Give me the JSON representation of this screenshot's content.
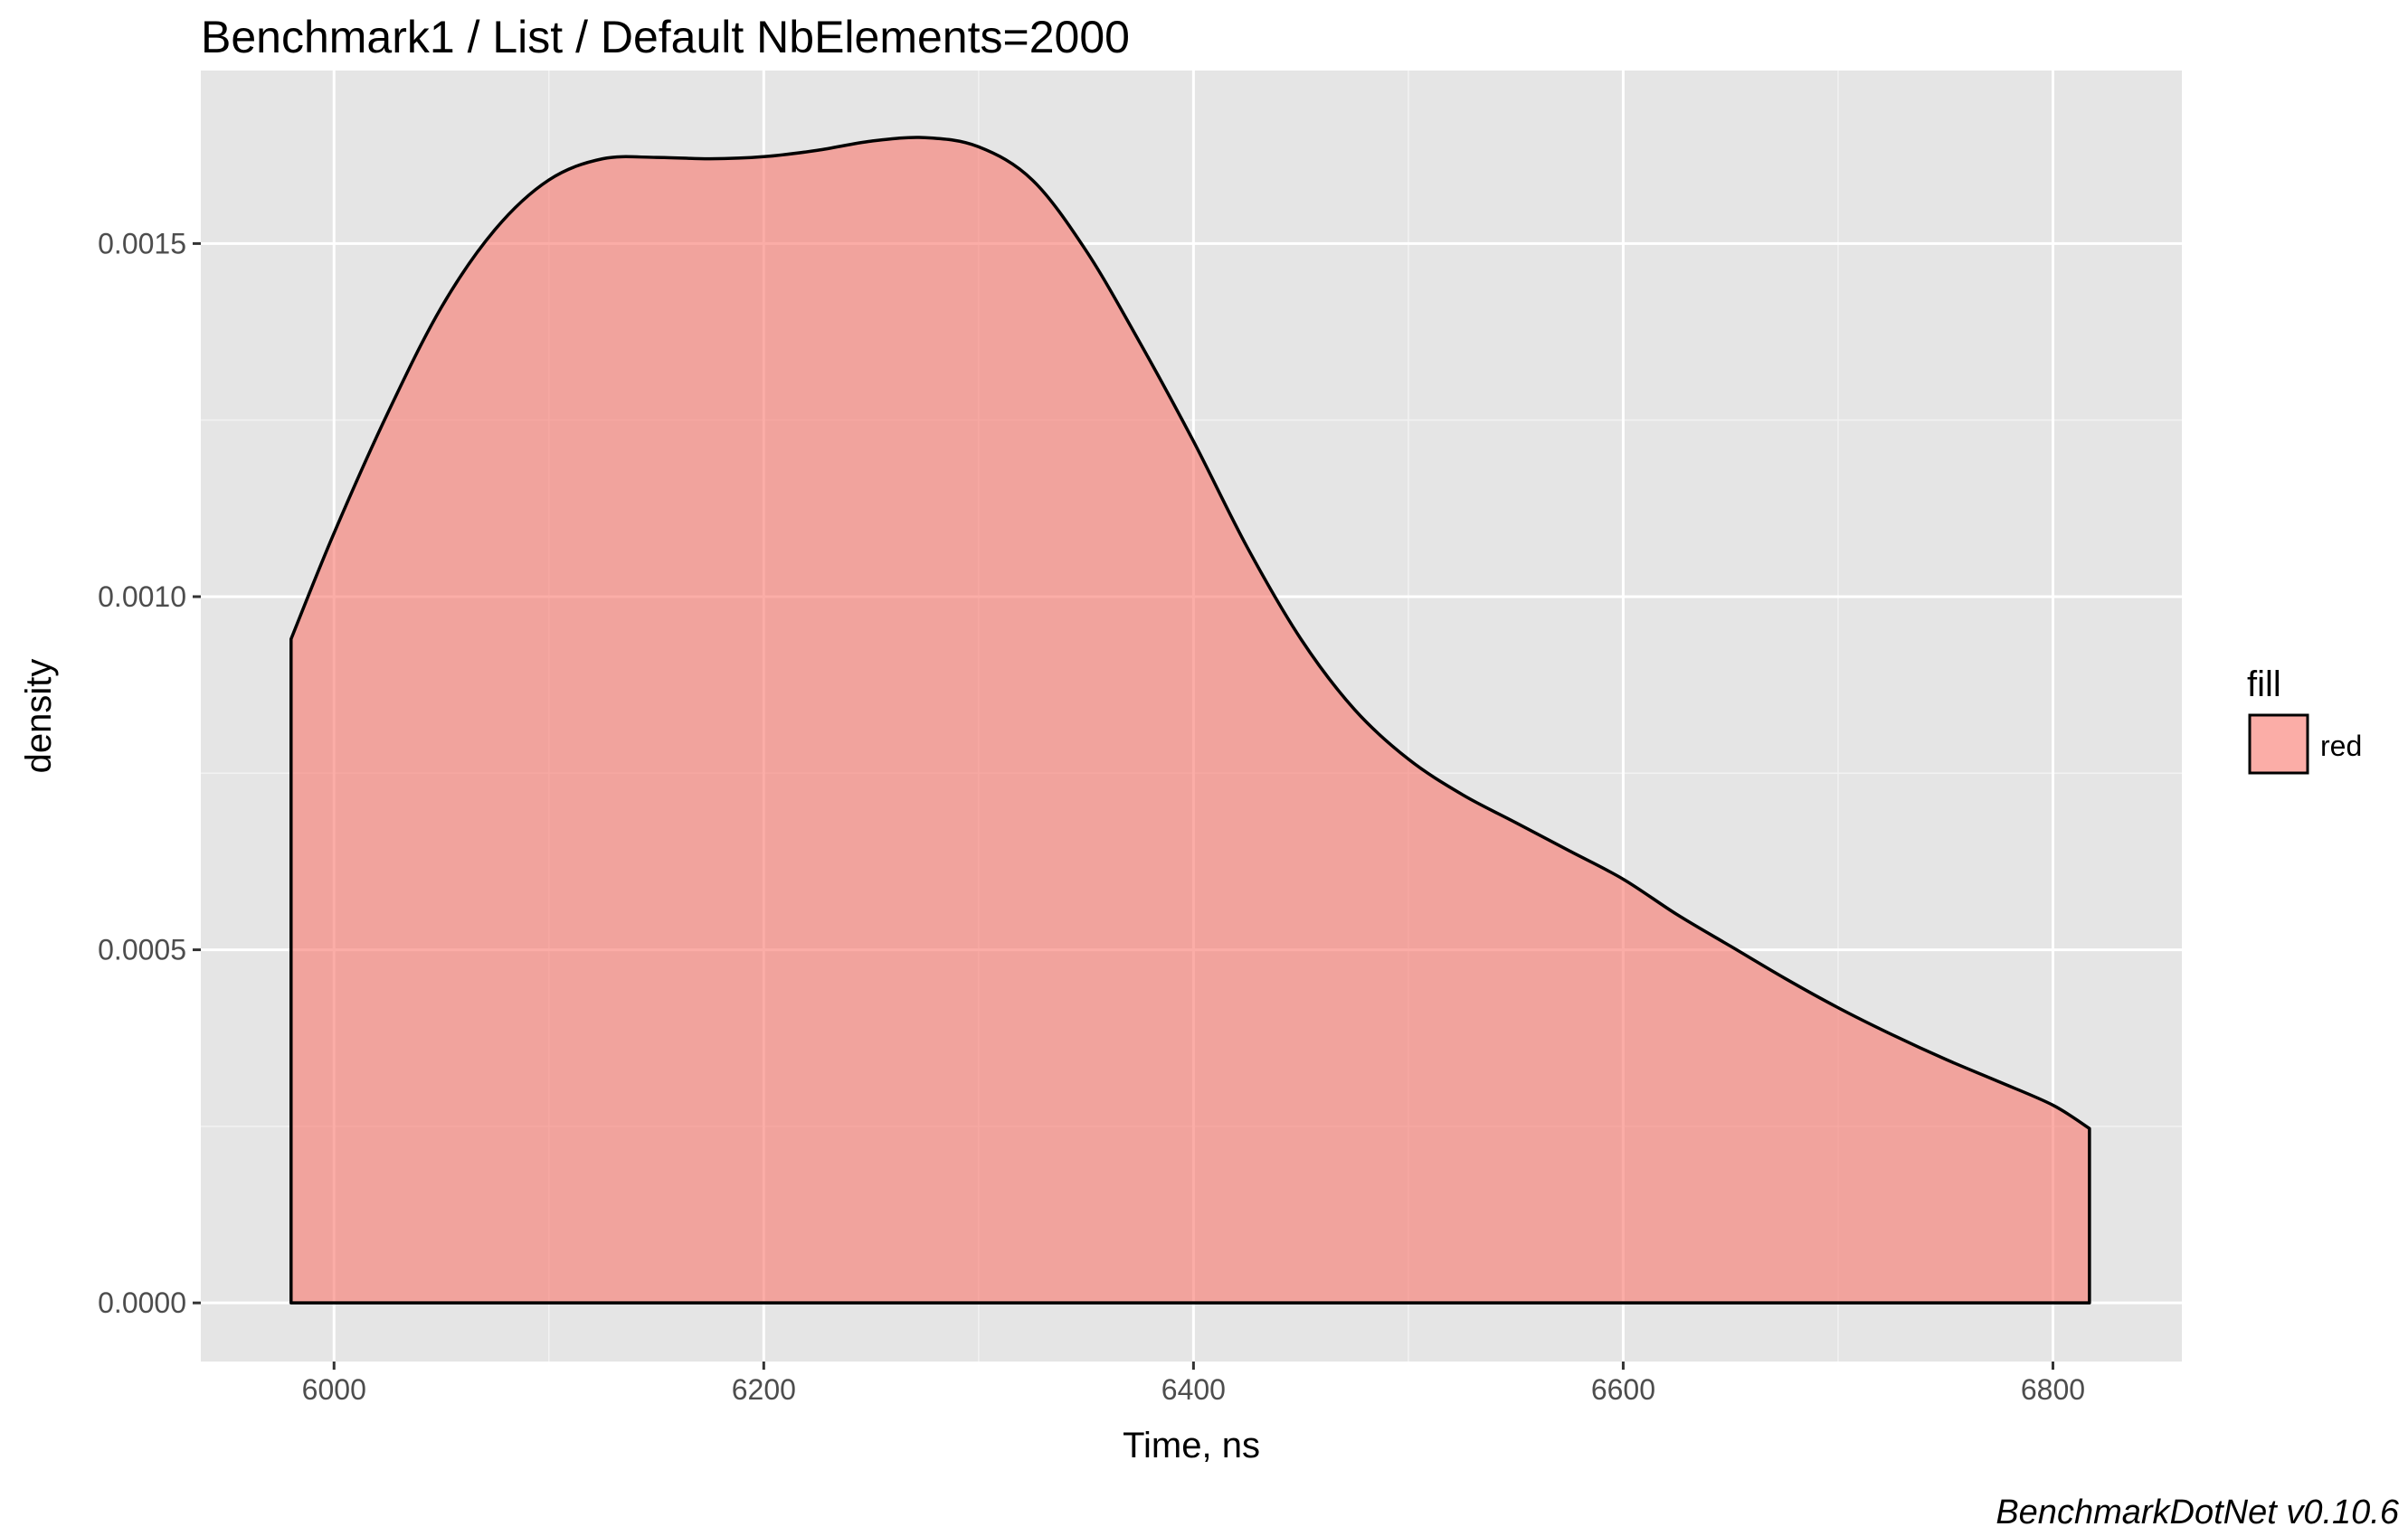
{
  "chart_data": {
    "type": "area",
    "title": "Benchmark1 / List / Default NbElements=2000",
    "xlabel": "Time, ns",
    "ylabel": "density",
    "caption": "BenchmarkDotNet v0.10.6",
    "xlim": [
      5938,
      6860
    ],
    "ylim": [
      -8.3e-05,
      0.001745
    ],
    "x_ticks": [
      6000,
      6200,
      6400,
      6600,
      6800
    ],
    "x_tick_labels": [
      "6000",
      "6200",
      "6400",
      "6600",
      "6800"
    ],
    "y_ticks": [
      0.0,
      0.0005,
      0.001,
      0.0015
    ],
    "y_tick_labels": [
      "0.0000",
      "0.0005",
      "0.0010",
      "0.0015"
    ],
    "grid": true,
    "legend": {
      "title": "fill",
      "position": "right",
      "entries": [
        {
          "label": "red",
          "color": "#F8766D"
        }
      ]
    },
    "series": [
      {
        "name": "red",
        "fill_color": "#F8766D",
        "fill_opacity": 0.6,
        "line_color": "#000000",
        "x": [
          5980,
          6000,
          6025,
          6050,
          6075,
          6100,
          6125,
          6150,
          6175,
          6200,
          6225,
          6250,
          6275,
          6300,
          6325,
          6350,
          6375,
          6400,
          6425,
          6450,
          6475,
          6500,
          6525,
          6550,
          6575,
          6600,
          6625,
          6650,
          6675,
          6700,
          6725,
          6750,
          6775,
          6800,
          6817
        ],
        "y": [
          0.00094,
          0.00109,
          0.00126,
          0.00141,
          0.00152,
          0.00159,
          0.00162,
          0.001622,
          0.00162,
          0.001623,
          0.001632,
          0.001645,
          0.00165,
          0.001637,
          0.00159,
          0.00149,
          0.00136,
          0.00122,
          0.00107,
          0.00094,
          0.00084,
          0.00077,
          0.00072,
          0.00068,
          0.00064,
          0.0006,
          0.00055,
          0.000505,
          0.00046,
          0.000418,
          0.00038,
          0.000345,
          0.000313,
          0.00028,
          0.000247
        ]
      }
    ]
  }
}
